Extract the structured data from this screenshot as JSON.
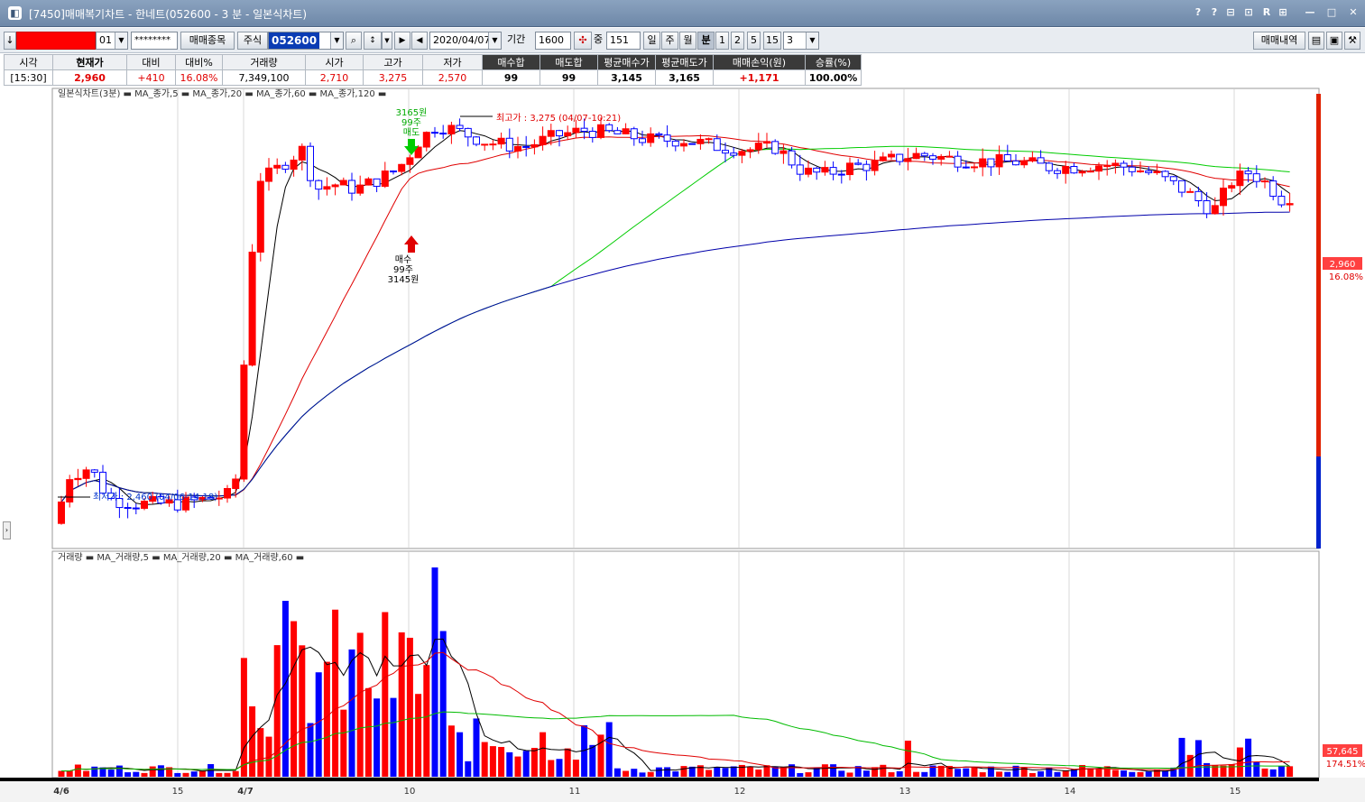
{
  "window": {
    "title": "[7450]매매복기차트 - 한네트(052600 - 3 분 - 일본식차트)",
    "controls": [
      "?",
      "?",
      "⊟",
      "⊡",
      "R",
      "⊞",
      "—",
      "□",
      "✕"
    ]
  },
  "toolbar": {
    "account_value": "01",
    "password_mask": "********",
    "trade_items_button": "매매종목",
    "market_label": "주식",
    "stock_code": "052600",
    "date_value": "2020/04/07",
    "period_label": "기간",
    "period_value": "1600",
    "count_label": "중",
    "count_value": "151",
    "unit_day": "일",
    "unit_week": "주",
    "unit_month": "월",
    "unit_minute": "분",
    "interval_1": "1",
    "interval_2": "2",
    "interval_5": "5",
    "interval_15": "15",
    "interval_select": "3",
    "trade_history_button": "매매내역"
  },
  "info": {
    "headers": [
      "시각",
      "현재가",
      "대비",
      "대비%",
      "거래량",
      "시가",
      "고가",
      "저가",
      "매수합",
      "매도합",
      "평균매수가",
      "평균매도가",
      "매매손익(원)",
      "승률(%)"
    ],
    "values": [
      "[15:30]",
      "2,960",
      "+410",
      "16.08%",
      "7,349,100",
      "2,710",
      "3,275",
      "2,570",
      "99",
      "99",
      "3,145",
      "3,165",
      "+1,171",
      "100.00%"
    ]
  },
  "price_chart": {
    "legend": "일본식차트(3분) ▬ MA_종가,5 ▬ MA_종가,20 ▬ MA_종가,60 ▬ MA_종가,120 ▬",
    "high_label": "최고가 : 3,275 (04/07-10:21)",
    "low_label": "최저가 : 2,460 (04/06-14:18)",
    "sell_marker": [
      "3165원",
      "99주",
      "매도"
    ],
    "buy_marker": [
      "매수",
      "99주",
      "3145원"
    ],
    "price_tag": "2,960",
    "pct_tag": "16.08%"
  },
  "volume_chart": {
    "legend": "거래량 ▬ MA_거래량,5 ▬ MA_거래량,20 ▬ MA_거래량,60 ▬",
    "volume_tag": "57,645",
    "volume_pct": "174.51%"
  },
  "x_axis": {
    "labels": [
      "4/6",
      "15",
      "4/7",
      "10",
      "11",
      "12",
      "13",
      "14",
      "15"
    ]
  },
  "colors": {
    "up": "#ff0000",
    "down": "#0000ff",
    "ma5": "#000000",
    "ma20": "#e00000",
    "ma60": "#00cc00",
    "ma120": "#0000aa"
  },
  "chart_data": {
    "type": "candlestick",
    "date": "2020/04/07",
    "interval": "3분",
    "price_high": 3275,
    "price_low": 2460,
    "close": 2960,
    "key_closes": [
      {
        "time": "4/6 14:18",
        "value": 2460
      },
      {
        "time": "4/7 09:30",
        "value": 3100
      },
      {
        "time": "4/7 10:21",
        "value": 3275
      },
      {
        "time": "4/7 12:00",
        "value": 3160
      },
      {
        "time": "4/7 13:00",
        "value": 3200
      },
      {
        "time": "4/7 14:00",
        "value": 3120
      },
      {
        "time": "4/7 15:30",
        "value": 2960
      }
    ],
    "trades": [
      {
        "side": "매수",
        "qty": "99주",
        "price": "3145원"
      },
      {
        "side": "매도",
        "qty": "99주",
        "price": "3165원"
      }
    ]
  }
}
